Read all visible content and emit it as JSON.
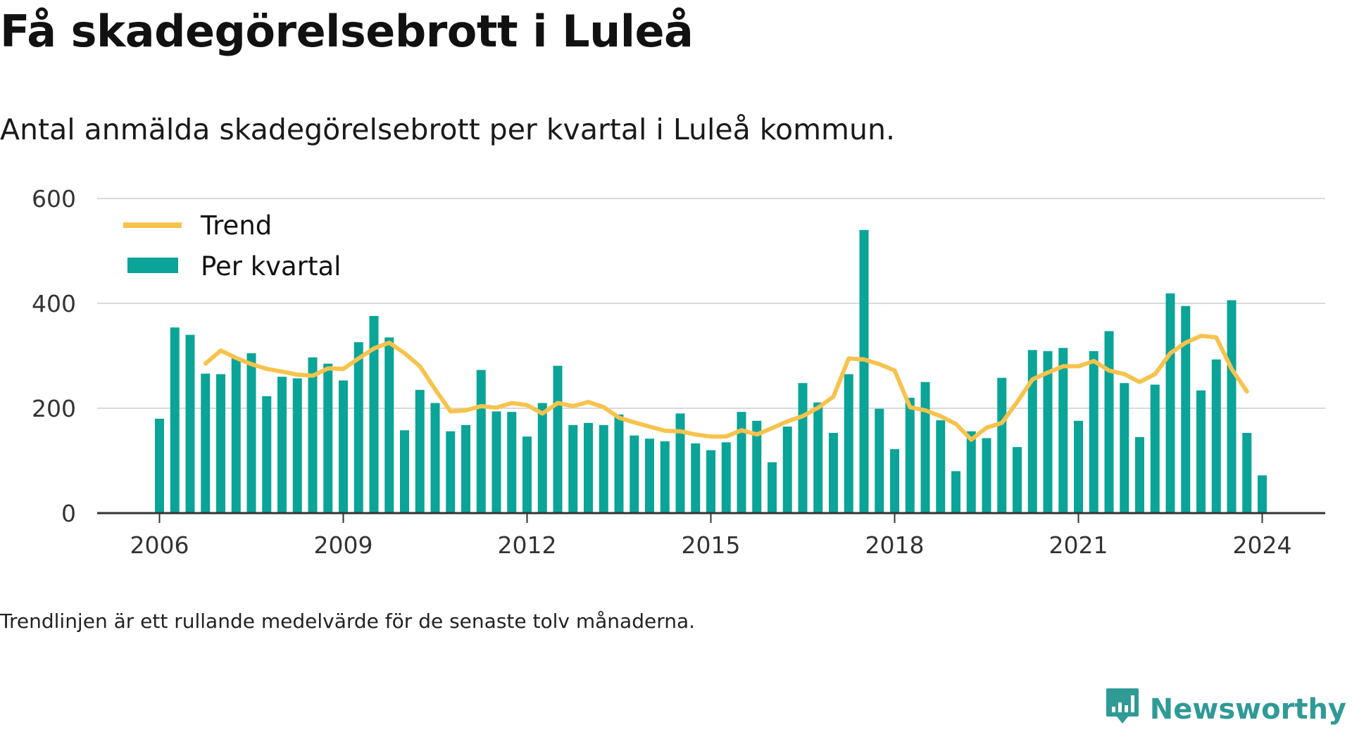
{
  "title": "Få skadegörelsebrott i Luleå",
  "subtitle": "Antal anmälda skadegörelsebrott per kvartal i Luleå kommun.",
  "note": "Trendlinjen är ett rullande medelvärde för de senaste tolv månaderna.",
  "brand": {
    "name": "Newsworthy",
    "icon": "newsworthy-logo-icon",
    "color": "#2f9a96"
  },
  "colors": {
    "bar": "#0aa498",
    "trend": "#f7c34d",
    "grid": "#d9d9d9",
    "axis": "#333333"
  },
  "chart_data": {
    "type": "bar",
    "xlabel": "",
    "ylabel": "",
    "ylim": [
      0,
      600
    ],
    "y_ticks": [
      "0",
      "200",
      "400",
      "600"
    ],
    "x_ticks": [
      "2006",
      "2009",
      "2012",
      "2015",
      "2018",
      "2021",
      "2024"
    ],
    "grid": true,
    "legend": {
      "placement": "top-left",
      "items": [
        {
          "label": "Trend",
          "kind": "line"
        },
        {
          "label": "Per kvartal",
          "kind": "bar"
        }
      ]
    },
    "start_year": 2006,
    "series": [
      {
        "name": "Per kvartal",
        "kind": "bar",
        "values": [
          180,
          354,
          340,
          266,
          265,
          296,
          305,
          223,
          260,
          257,
          297,
          285,
          253,
          326,
          376,
          335,
          158,
          235,
          210,
          156,
          168,
          273,
          194,
          193,
          146,
          210,
          281,
          168,
          172,
          168,
          188,
          148,
          142,
          137,
          190,
          133,
          120,
          135,
          193,
          176,
          97,
          165,
          248,
          211,
          153,
          265,
          540,
          199,
          122,
          220,
          250,
          177,
          80,
          156,
          143,
          258,
          126,
          311,
          309,
          315,
          176,
          309,
          347,
          248,
          145,
          245,
          419,
          395,
          234,
          293,
          406,
          153,
          72
        ]
      },
      {
        "name": "Trend",
        "kind": "line",
        "values": [
          null,
          null,
          null,
          285,
          310,
          296,
          284,
          275,
          270,
          264,
          262,
          276,
          275,
          295,
          314,
          325,
          305,
          280,
          236,
          194,
          196,
          204,
          201,
          210,
          206,
          190,
          210,
          204,
          212,
          202,
          182,
          173,
          165,
          157,
          156,
          150,
          146,
          146,
          158,
          150,
          162,
          175,
          185,
          201,
          222,
          295,
          293,
          284,
          272,
          202,
          196,
          185,
          170,
          140,
          163,
          172,
          212,
          255,
          268,
          280,
          280,
          290,
          272,
          265,
          250,
          265,
          305,
          325,
          338,
          335,
          275,
          232,
          null
        ]
      }
    ]
  }
}
